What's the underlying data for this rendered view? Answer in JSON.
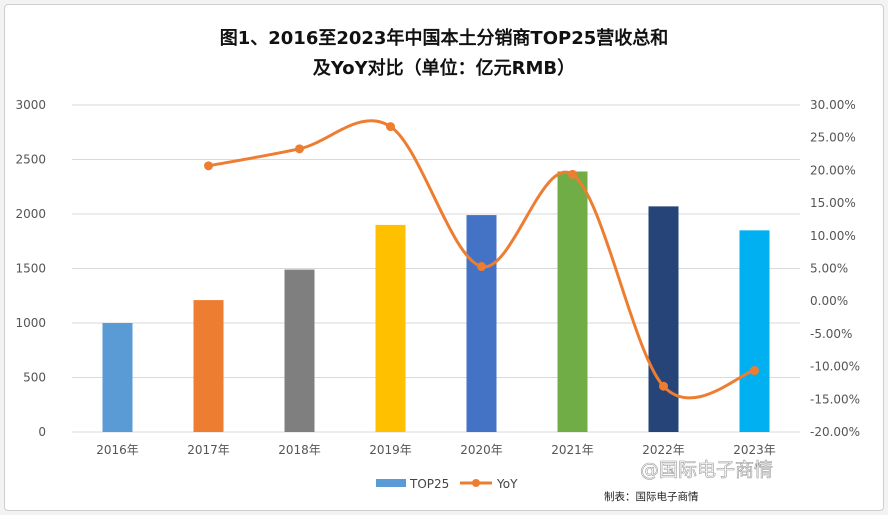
{
  "chart_data": {
    "type": "bar",
    "title_line1": "图1、2016至2023年中国本土分销商TOP25营收总和",
    "title_line2": "及YoY对比（单位：亿元RMB）",
    "categories": [
      "2016年",
      "2017年",
      "2018年",
      "2019年",
      "2020年",
      "2021年",
      "2022年",
      "2023年"
    ],
    "series": [
      {
        "name": "TOP25",
        "kind": "bar",
        "axis": "left",
        "values": [
          1000,
          1210,
          1490,
          1900,
          1990,
          2390,
          2070,
          1850
        ],
        "colors": [
          "#5b9bd5",
          "#ed7d31",
          "#7f7f7f",
          "#ffc000",
          "#4472c4",
          "#70ad47",
          "#264478",
          "#00b0f0"
        ]
      },
      {
        "name": "YoY",
        "kind": "line",
        "axis": "right",
        "values": [
          null,
          20.7,
          23.3,
          26.7,
          5.3,
          19.4,
          -13.0,
          -10.6
        ],
        "color": "#ed7d31"
      }
    ],
    "ylim_left": [
      0,
      3000
    ],
    "yticks_left": [
      "0",
      "500",
      "1000",
      "1500",
      "2000",
      "2500",
      "3000"
    ],
    "ylim_right": [
      -20,
      30
    ],
    "yticks_right": [
      "-20.00%",
      "-15.00%",
      "-10.00%",
      "-5.00%",
      "0.00%",
      "5.00%",
      "10.00%",
      "15.00%",
      "20.00%",
      "25.00%",
      "30.00%"
    ],
    "grid": true,
    "legend_position": "bottom"
  },
  "source_text": "制表：国际电子商情",
  "watermark_text": "@国际电子商情"
}
